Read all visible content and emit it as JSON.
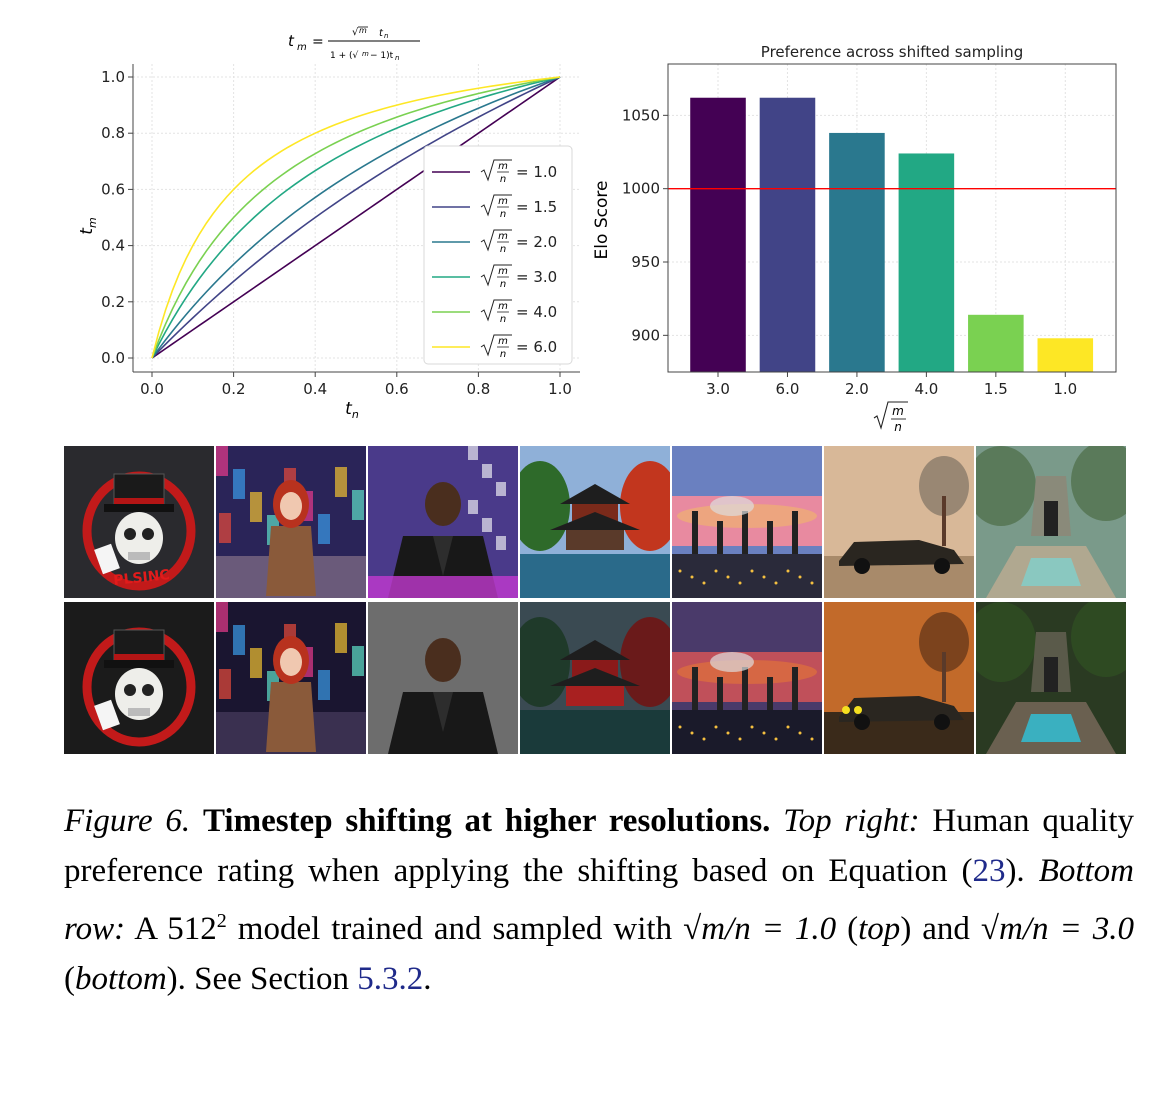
{
  "line_chart_title_html": "",
  "chart_data": [
    {
      "type": "line",
      "title": "t_m = √(m/n) t_n / (1 + (√(m/n) − 1) t_n)",
      "xlabel": "t_n",
      "ylabel": "t_m",
      "xlim": [
        0.0,
        1.0
      ],
      "ylim": [
        0.0,
        1.0
      ],
      "xticks": [
        "0.0",
        "0.2",
        "0.4",
        "0.6",
        "0.8",
        "1.0"
      ],
      "yticks": [
        "0.0",
        "0.2",
        "0.4",
        "0.6",
        "0.8",
        "1.0"
      ],
      "grid": true,
      "legend_position": "center-right",
      "series": [
        {
          "name": "= 1.0",
          "shift": 1.0,
          "color": "#440154"
        },
        {
          "name": "= 1.5",
          "shift": 1.5,
          "color": "#414487"
        },
        {
          "name": "= 2.0",
          "shift": 2.0,
          "color": "#2a788e"
        },
        {
          "name": "= 3.0",
          "shift": 3.0,
          "color": "#22a884"
        },
        {
          "name": "= 4.0",
          "shift": 4.0,
          "color": "#7ad151"
        },
        {
          "name": "= 6.0",
          "shift": 6.0,
          "color": "#fde725"
        }
      ]
    },
    {
      "type": "bar",
      "title": "Preference across shifted sampling",
      "xlabel": "√(m/n)",
      "ylabel": "Elo Score",
      "categories": [
        "3.0",
        "6.0",
        "2.0",
        "4.0",
        "1.5",
        "1.0"
      ],
      "values": [
        1062,
        1062,
        1038,
        1024,
        914,
        898
      ],
      "colors": [
        "#440154",
        "#414487",
        "#2a788e",
        "#22a884",
        "#7ad151",
        "#fde725"
      ],
      "ylim": [
        875,
        1085
      ],
      "yticks": [
        900,
        950,
        1000,
        1050
      ],
      "reference_line": 1000,
      "reference_color": "#ff0000",
      "grid": true
    }
  ],
  "image_grid": {
    "rows": 2,
    "cols": 7,
    "top_row": [
      "skull-logo-image",
      "red-hair-woman-image",
      "man-leather-jacket-image",
      "pagoda-image",
      "industrial-sunset-image",
      "vintage-car-image",
      "temple-ruins-image"
    ],
    "bottom_row": [
      "skull-logo-image",
      "red-hair-woman-image",
      "man-leather-jacket-image",
      "pagoda-image",
      "industrial-sunset-image",
      "vintage-car-image",
      "temple-ruins-image"
    ],
    "logo_text": "PLSINC"
  },
  "caption": {
    "figure_label": "Figure 6.",
    "title": "Timestep shifting at higher resolutions.",
    "top_right_label": "Top right:",
    "text1": "Human quality preference rating when applying the shifting based on Equation (",
    "eq_ref": "23",
    "text2": ").",
    "bottom_row_label": "Bottom row:",
    "text3": "A 512",
    "sup": "2",
    "text4": "model trained and sampled with",
    "math1": "√m/n = 1.0",
    "top_label": "top",
    "text5": "and",
    "math2": "√m/n = 3.0",
    "bottom_label": "bottom",
    "text6": "). See Section",
    "section_ref": "5.3.2",
    "text7": "."
  }
}
